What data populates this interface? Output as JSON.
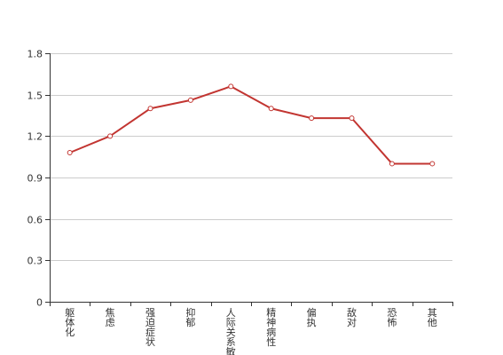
{
  "chart_data": {
    "type": "line",
    "title": "",
    "xlabel": "",
    "ylabel": "",
    "categories": [
      "躯体化",
      "焦虑",
      "强迫症状",
      "抑郁",
      "人际关系敏感",
      "精神病性",
      "偏执",
      "敌对",
      "恐怖",
      "其他"
    ],
    "values": [
      1.08,
      1.2,
      1.4,
      1.46,
      1.56,
      1.4,
      1.33,
      1.33,
      1.0,
      1.0
    ],
    "ylim": [
      0,
      1.8
    ],
    "yticks": [
      "0",
      "0.3",
      "0.6",
      "0.9",
      "1.2",
      "1.5",
      "1.8"
    ],
    "grid": true,
    "legend": "none",
    "series_color": "#c23531",
    "marker_fill": "#ffffff"
  }
}
